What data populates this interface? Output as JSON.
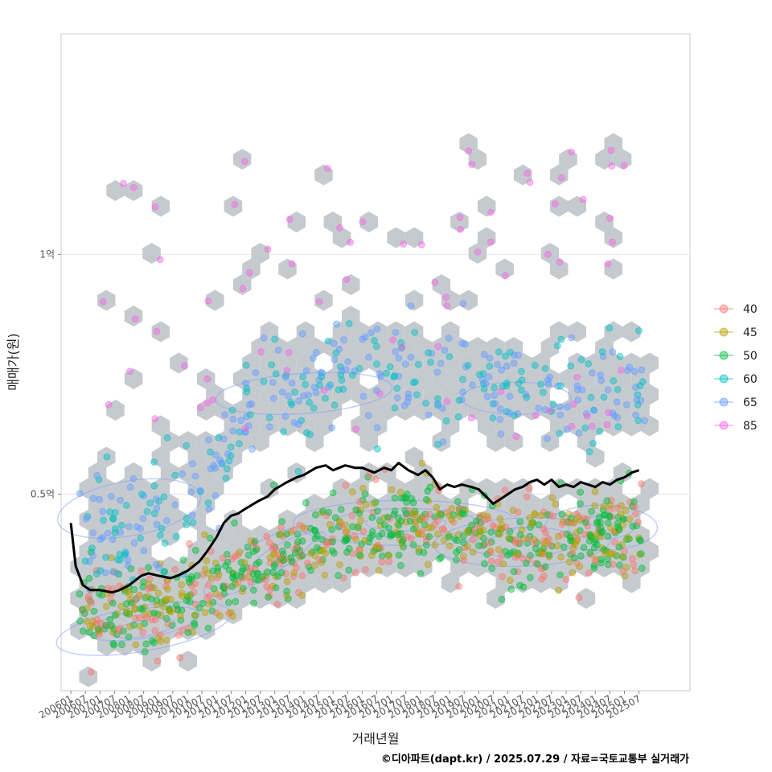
{
  "chart_data": {
    "type": "scatter",
    "xlabel": "거래년월",
    "ylabel": "매매가(원)",
    "caption": "©디아파트(dapt.kr) / 2025.07.29 / 자료=국토교통부 실거래가",
    "y_ticks": [
      {
        "value": 50000000,
        "label": "0.5억"
      },
      {
        "value": 100000000,
        "label": "1억"
      }
    ],
    "ylim": [
      9000000,
      146000000
    ],
    "x_ticks": [
      "200601",
      "200607",
      "200701",
      "200707",
      "200801",
      "200807",
      "200901",
      "200907",
      "201001",
      "201007",
      "201101",
      "201107",
      "201201",
      "201207",
      "201301",
      "201307",
      "201401",
      "201407",
      "201501",
      "201507",
      "201601",
      "201607",
      "201701",
      "201707",
      "201801",
      "201807",
      "201901",
      "201907",
      "202001",
      "202007",
      "202101",
      "202107",
      "202201",
      "202207",
      "202301",
      "202307",
      "202401",
      "202407",
      "202501",
      "202507"
    ],
    "xlim": [
      "2005-09",
      "2027-04"
    ],
    "grid": true,
    "legend_position": "right",
    "series": [
      {
        "name": "40",
        "color": "#F8766D"
      },
      {
        "name": "45",
        "color": "#B79F00"
      },
      {
        "name": "50",
        "color": "#00BA38"
      },
      {
        "name": "60",
        "color": "#00BFC4"
      },
      {
        "name": "65",
        "color": "#619CFF"
      },
      {
        "name": "85",
        "color": "#F564E3"
      }
    ],
    "median_line": {
      "color": "#000000",
      "points": [
        [
          "2006-01",
          44
        ],
        [
          "2006-03",
          35
        ],
        [
          "2006-06",
          31
        ],
        [
          "2006-09",
          30
        ],
        [
          "2007-01",
          30
        ],
        [
          "2007-06",
          29.5
        ],
        [
          "2007-09",
          30
        ],
        [
          "2008-01",
          31
        ],
        [
          "2008-06",
          33
        ],
        [
          "2008-09",
          33.5
        ],
        [
          "2009-01",
          33
        ],
        [
          "2009-06",
          32.5
        ],
        [
          "2009-09",
          33
        ],
        [
          "2010-01",
          34
        ],
        [
          "2010-06",
          36
        ],
        [
          "2010-09",
          38
        ],
        [
          "2011-01",
          41
        ],
        [
          "2011-04",
          44
        ],
        [
          "2011-07",
          45.5
        ],
        [
          "2011-10",
          46
        ],
        [
          "2012-01",
          47
        ],
        [
          "2012-06",
          48.5
        ],
        [
          "2012-10",
          49.5
        ],
        [
          "2013-01",
          51
        ],
        [
          "2013-06",
          52.5
        ],
        [
          "2013-10",
          53.5
        ],
        [
          "2014-01",
          54
        ],
        [
          "2014-06",
          55.5
        ],
        [
          "2014-10",
          56
        ],
        [
          "2015-01",
          55
        ],
        [
          "2015-06",
          56
        ],
        [
          "2015-10",
          55.5
        ],
        [
          "2016-01",
          55.5
        ],
        [
          "2016-06",
          54.5
        ],
        [
          "2016-10",
          55.5
        ],
        [
          "2017-01",
          55
        ],
        [
          "2017-04",
          56.5
        ],
        [
          "2017-08",
          55
        ],
        [
          "2017-12",
          54
        ],
        [
          "2018-03",
          55
        ],
        [
          "2018-06",
          53.5
        ],
        [
          "2018-09",
          51
        ],
        [
          "2018-12",
          52
        ],
        [
          "2019-03",
          51.5
        ],
        [
          "2019-06",
          52
        ],
        [
          "2019-10",
          51.5
        ],
        [
          "2020-01",
          51
        ],
        [
          "2020-04",
          49.5
        ],
        [
          "2020-07",
          48
        ],
        [
          "2020-10",
          49
        ],
        [
          "2021-01",
          50
        ],
        [
          "2021-04",
          51
        ],
        [
          "2021-07",
          51.5
        ],
        [
          "2021-10",
          52.5
        ],
        [
          "2022-01",
          53
        ],
        [
          "2022-04",
          52
        ],
        [
          "2022-07",
          53
        ],
        [
          "2022-10",
          51.5
        ],
        [
          "2023-01",
          52
        ],
        [
          "2023-04",
          51.5
        ],
        [
          "2023-07",
          52.5
        ],
        [
          "2023-10",
          52
        ],
        [
          "2024-01",
          51.5
        ],
        [
          "2024-04",
          52.5
        ],
        [
          "2024-07",
          52
        ],
        [
          "2024-10",
          53
        ],
        [
          "2025-01",
          53.5
        ],
        [
          "2025-04",
          54.5
        ],
        [
          "2025-07",
          55
        ]
      ]
    }
  }
}
